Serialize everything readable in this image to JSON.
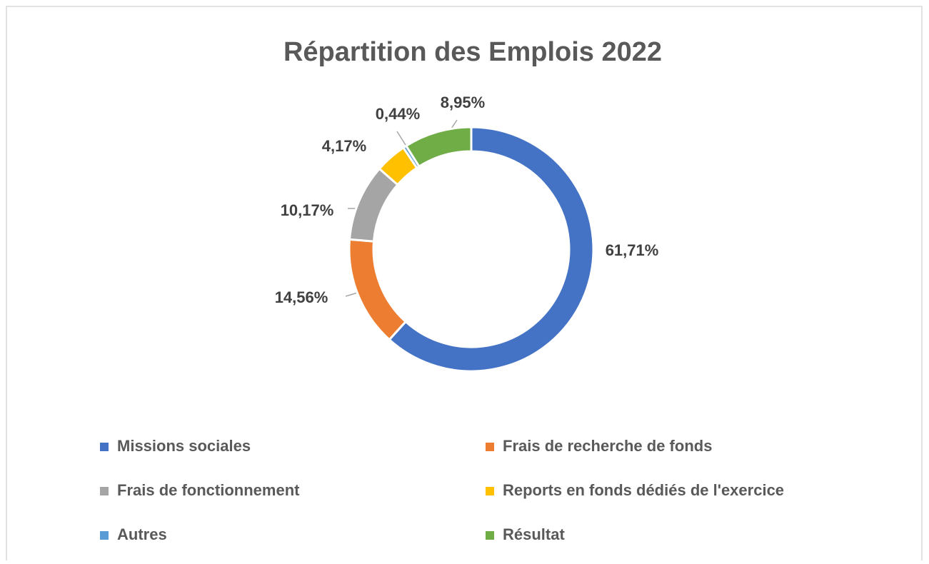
{
  "chart_data": {
    "type": "donut",
    "title": "Répartition des Emplois 2022",
    "categories": [
      "Missions sociales",
      "Frais de recherche de fonds",
      "Frais de fonctionnement",
      "Reports en fonds dédiés de l'exercice",
      "Autres",
      "Résultat"
    ],
    "values": [
      61.71,
      14.56,
      10.17,
      4.17,
      0.44,
      8.95
    ],
    "value_labels": [
      "61,71%",
      "14,56%",
      "10,17%",
      "4,17%",
      "0,44%",
      "8,95%"
    ],
    "colors": [
      "#4472c4",
      "#ed7d31",
      "#a5a5a5",
      "#ffc000",
      "#5b9bd5",
      "#70ad47"
    ],
    "legend": "bottom"
  }
}
